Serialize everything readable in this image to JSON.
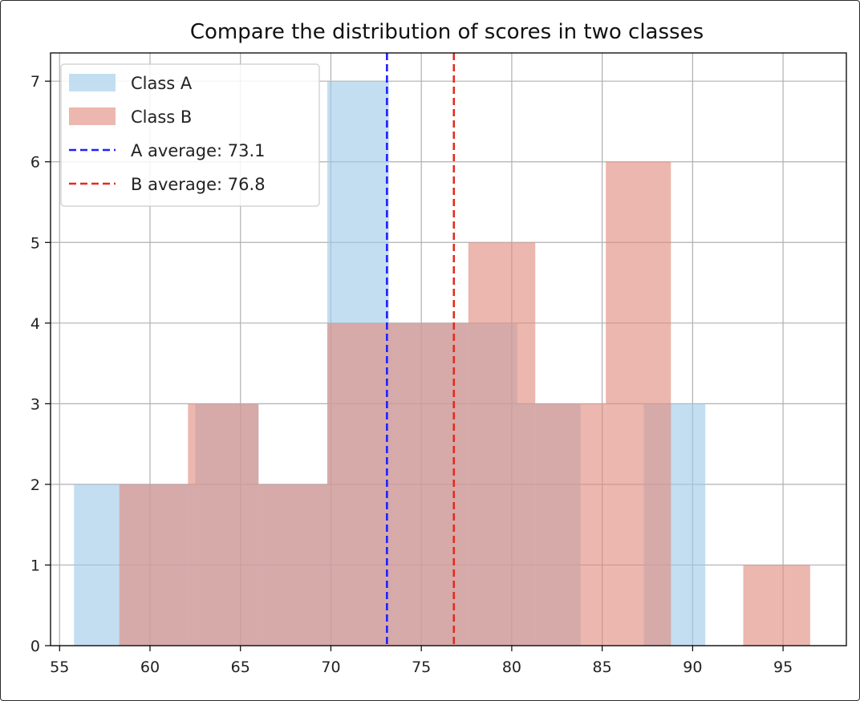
{
  "chart_data": {
    "type": "bar",
    "title": "Compare the distribution of scores in two classes",
    "xlabel": "",
    "ylabel": "",
    "xlim": [
      54.5,
      98.5
    ],
    "ylim": [
      0,
      7.35
    ],
    "xticks": [
      55,
      60,
      65,
      70,
      75,
      80,
      85,
      90,
      95
    ],
    "yticks": [
      0,
      1,
      2,
      3,
      4,
      5,
      6,
      7
    ],
    "grid": true,
    "legend_position": "upper-left",
    "series": [
      {
        "name": "Class A",
        "color": "#9ecae9",
        "opacity": 0.62,
        "bins": [
          {
            "x0": 55.8,
            "x1": 58.3,
            "count": 2
          },
          {
            "x0": 58.3,
            "x1": 62.5,
            "count": 2
          },
          {
            "x0": 62.5,
            "x1": 66.0,
            "count": 3
          },
          {
            "x0": 66.0,
            "x1": 69.8,
            "count": 2
          },
          {
            "x0": 69.8,
            "x1": 73.2,
            "count": 7
          },
          {
            "x0": 73.2,
            "x1": 80.3,
            "count": 4
          },
          {
            "x0": 80.3,
            "x1": 83.8,
            "count": 3
          },
          {
            "x0": 83.8,
            "x1": 87.3,
            "count": 0
          },
          {
            "x0": 87.3,
            "x1": 90.7,
            "count": 3
          }
        ]
      },
      {
        "name": "Class B",
        "color": "#e08a7c",
        "opacity": 0.62,
        "bins": [
          {
            "x0": 58.3,
            "x1": 62.1,
            "count": 2
          },
          {
            "x0": 62.1,
            "x1": 66.0,
            "count": 3
          },
          {
            "x0": 66.0,
            "x1": 69.8,
            "count": 2
          },
          {
            "x0": 69.8,
            "x1": 73.7,
            "count": 4
          },
          {
            "x0": 73.7,
            "x1": 77.6,
            "count": 4
          },
          {
            "x0": 77.6,
            "x1": 81.3,
            "count": 5
          },
          {
            "x0": 81.3,
            "x1": 85.2,
            "count": 3
          },
          {
            "x0": 85.2,
            "x1": 88.8,
            "count": 6
          },
          {
            "x0": 88.8,
            "x1": 92.8,
            "count": 0
          },
          {
            "x0": 92.8,
            "x1": 96.5,
            "count": 1
          }
        ]
      }
    ],
    "mean_lines": [
      {
        "name": "A average: 73.1",
        "value": 73.1,
        "color": "#1f1fff"
      },
      {
        "name": "B average: 76.8",
        "value": 76.8,
        "color": "#e32b1f"
      }
    ]
  }
}
